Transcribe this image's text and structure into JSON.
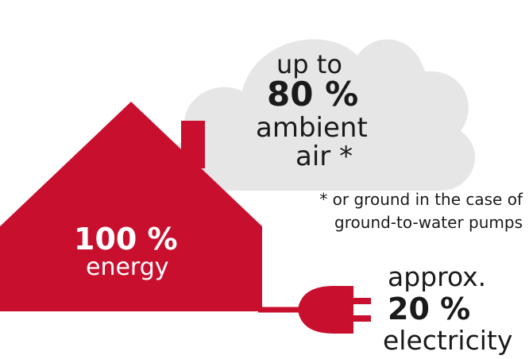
{
  "colors": {
    "house_red": "#c8102e",
    "cloud_gray": "#e6e6e6",
    "text_dark": "#1a1a1a",
    "text_on_red": "#ffffff"
  },
  "cloud": {
    "line1": "up to",
    "percent": "80 %",
    "line3": "ambient",
    "line4": "air *"
  },
  "house": {
    "percent": "100 %",
    "label": "energy"
  },
  "footnote": {
    "line1": "* or ground in the case of",
    "line2": "ground-to-water pumps"
  },
  "plug": {
    "line1": "approx.",
    "percent": "20 %",
    "label": "electricity"
  }
}
